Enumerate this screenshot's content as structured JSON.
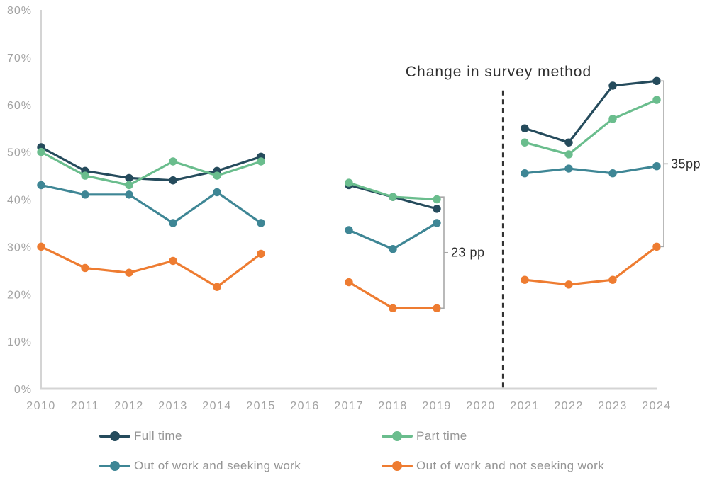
{
  "chart_data": {
    "type": "line",
    "x": [
      2010,
      2011,
      2012,
      2013,
      2014,
      2015,
      2016,
      2017,
      2018,
      2019,
      2020,
      2021,
      2022,
      2023,
      2024
    ],
    "x_labels": [
      "2010",
      "2011",
      "2012",
      "2013",
      "2014",
      "2015",
      "2016",
      "2017",
      "2018",
      "2019",
      "2020",
      "2021",
      "2022",
      "2023",
      "2024"
    ],
    "series": [
      {
        "name": "Full time",
        "color": "#254b5c",
        "values": [
          51,
          46,
          44.5,
          44,
          46,
          49,
          null,
          43,
          40.5,
          38,
          null,
          55,
          52,
          64,
          65
        ]
      },
      {
        "name": "Part time",
        "color": "#6abd8d",
        "values": [
          50,
          45,
          43,
          48,
          45,
          48,
          null,
          43.5,
          40.5,
          40,
          null,
          52,
          49.5,
          57,
          61
        ]
      },
      {
        "name": "Out of work and seeking work",
        "color": "#3e8695",
        "values": [
          43,
          41,
          41,
          35,
          41.5,
          35,
          null,
          33.5,
          29.5,
          35,
          null,
          45.5,
          46.5,
          45.5,
          47
        ]
      },
      {
        "name": "Out of work and not seeking work",
        "color": "#ee7c31",
        "values": [
          30,
          25.5,
          24.5,
          27,
          21.5,
          28.5,
          null,
          22.5,
          17,
          17,
          null,
          23,
          22,
          23,
          30
        ]
      }
    ],
    "ylim": [
      0,
      80
    ],
    "ytick_step": 10,
    "ytick_labels": [
      "0%",
      "10%",
      "20%",
      "30%",
      "40%",
      "50%",
      "60%",
      "70%",
      "80%"
    ],
    "grid": false,
    "legend_position": "bottom",
    "annotations": {
      "survey_change_label": "Change in survey method",
      "dashed_line_x": 2020.5,
      "dashed_line_top_value": 63,
      "brackets": [
        {
          "label": "23 pp",
          "x": 2019,
          "top": 40.5,
          "bottom": 17
        },
        {
          "label": "35pp",
          "x": 2024,
          "top": 65,
          "bottom": 30
        }
      ]
    },
    "colors": {
      "axis": "#d4d4d4",
      "tick_label": "#a3a3a3",
      "annotation_text": "#2f2f2f",
      "bracket": "#a8a8a8",
      "dashed_line": "#333333",
      "legend_text": "#949494"
    }
  }
}
